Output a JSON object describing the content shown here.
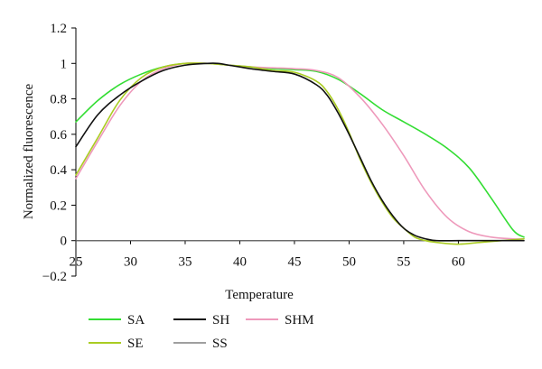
{
  "chart_data": {
    "type": "line",
    "title": "",
    "xlabel": "Temperature",
    "ylabel": "Normalized fluorescence",
    "xlim": [
      25,
      66
    ],
    "ylim": [
      -0.2,
      1.2
    ],
    "x_ticks": [
      25,
      30,
      35,
      40,
      45,
      50,
      55,
      60
    ],
    "x_tick_labels": [
      "25",
      "30",
      "35",
      "40",
      "45",
      "50",
      "55",
      "60"
    ],
    "y_ticks": [
      -0.2,
      0,
      0.2,
      0.4,
      0.6,
      0.8,
      1,
      1.2
    ],
    "y_tick_labels": [
      "−0.2",
      "0",
      "0.2",
      "0.4",
      "0.6",
      "0.8",
      "1",
      "1.2"
    ],
    "grid": false,
    "legend_position": "bottom-left",
    "series": [
      {
        "name": "SA",
        "color": "#33dd33",
        "x": [
          25,
          27,
          29,
          31,
          33,
          35,
          37,
          39,
          41,
          43,
          45,
          47,
          49,
          51,
          53,
          55,
          57,
          59,
          61,
          63,
          65,
          66
        ],
        "y": [
          0.67,
          0.79,
          0.88,
          0.94,
          0.98,
          1.0,
          1.0,
          0.99,
          0.98,
          0.97,
          0.965,
          0.955,
          0.91,
          0.83,
          0.74,
          0.67,
          0.6,
          0.52,
          0.41,
          0.24,
          0.06,
          0.02
        ]
      },
      {
        "name": "SE",
        "color": "#aacc22",
        "x": [
          25,
          27,
          29,
          31,
          33,
          35,
          37,
          39,
          41,
          43,
          45,
          47,
          48,
          49,
          50,
          51,
          52,
          53,
          54,
          55,
          56,
          57,
          58,
          60,
          62,
          64,
          66
        ],
        "y": [
          0.37,
          0.58,
          0.79,
          0.92,
          0.98,
          1.0,
          1.0,
          0.99,
          0.98,
          0.96,
          0.95,
          0.9,
          0.84,
          0.74,
          0.61,
          0.46,
          0.33,
          0.22,
          0.13,
          0.07,
          0.02,
          0.0,
          -0.01,
          -0.02,
          -0.01,
          0.0,
          0.01
        ]
      },
      {
        "name": "SH",
        "color": "#111111",
        "x": [
          25,
          27,
          29,
          31,
          33,
          35,
          37,
          38,
          39,
          40,
          41,
          43,
          45,
          47,
          48,
          49,
          50,
          51,
          52,
          53,
          54,
          55,
          56,
          57,
          58,
          60,
          62,
          64,
          66
        ],
        "y": [
          0.53,
          0.71,
          0.82,
          0.9,
          0.96,
          0.99,
          1.0,
          1.0,
          0.99,
          0.98,
          0.97,
          0.955,
          0.94,
          0.88,
          0.82,
          0.72,
          0.6,
          0.47,
          0.34,
          0.23,
          0.14,
          0.07,
          0.03,
          0.01,
          0.0,
          0.0,
          0.0,
          0.0,
          0.0
        ]
      },
      {
        "name": "SS",
        "color": "#666666",
        "x": [
          25,
          30,
          35,
          40,
          45,
          50,
          55,
          60,
          65,
          66
        ],
        "y": [
          0,
          0,
          0,
          0,
          0,
          0,
          0,
          0,
          0,
          0
        ]
      },
      {
        "name": "SHM",
        "color": "#ee99bb",
        "x": [
          25,
          27,
          29,
          31,
          33,
          35,
          37,
          39,
          41,
          43,
          45,
          47,
          49,
          51,
          53,
          55,
          57,
          59,
          61,
          63,
          65,
          66
        ],
        "y": [
          0.35,
          0.56,
          0.76,
          0.9,
          0.97,
          1.0,
          1.0,
          0.99,
          0.98,
          0.975,
          0.97,
          0.96,
          0.92,
          0.81,
          0.66,
          0.48,
          0.28,
          0.13,
          0.05,
          0.02,
          0.01,
          0.01
        ]
      }
    ]
  }
}
